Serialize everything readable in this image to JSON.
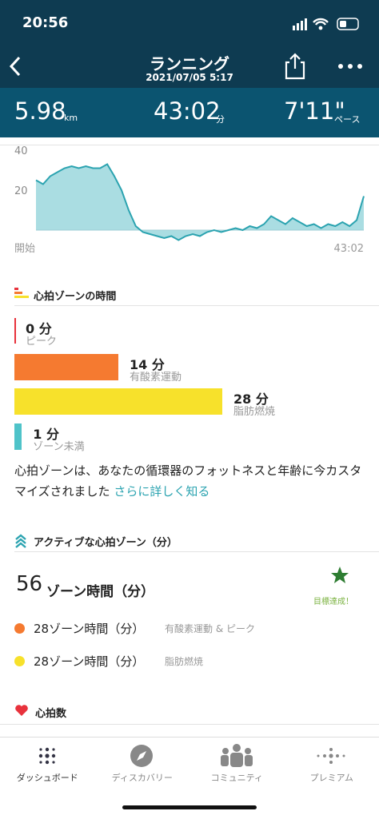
{
  "status_bar": {
    "time": "20:56"
  },
  "header": {
    "title": "ランニング",
    "datetime": "2021/07/05 5:17"
  },
  "stats": [
    {
      "value": "5.98",
      "unit": "km"
    },
    {
      "value": "43:02",
      "unit": "分"
    },
    {
      "value": "7'11\"",
      "unit": "ペース"
    }
  ],
  "pace_chart": {
    "ylim": [
      -8,
      44
    ],
    "yticks": [
      20,
      40
    ],
    "x_labels": [
      "開始",
      "43:02"
    ],
    "color": "#2ba3b0",
    "fill": "#aadde2",
    "values": [
      25,
      23,
      27,
      29,
      31,
      32,
      31,
      32,
      31,
      31,
      33,
      27,
      20,
      10,
      2,
      -1,
      -2,
      -3,
      -4,
      -3,
      -5,
      -3,
      -2,
      -3,
      -1,
      0,
      -1,
      0,
      1,
      0,
      2,
      1,
      3,
      7,
      5,
      3,
      6,
      4,
      2,
      3,
      1,
      3,
      2,
      4,
      2,
      5,
      17
    ]
  },
  "zone_section": {
    "title": "心拍ゾーンの時間",
    "zones": [
      {
        "minutes": 0,
        "label": "0 分",
        "name": "ピーク",
        "color": "#e8323c"
      },
      {
        "minutes": 14,
        "label": "14 分",
        "name": "有酸素運動",
        "color": "#f57a30"
      },
      {
        "minutes": 28,
        "label": "28 分",
        "name": "脂肪燃焼",
        "color": "#f7e12b"
      },
      {
        "minutes": 1,
        "label": "1 分",
        "name": "ゾーン未満",
        "color": "#4fc3c9"
      }
    ],
    "note": "心拍ゾーンは、あなたの循環器のフォットネスと年齢に今カスタマイズされました",
    "link": "さらに詳しく知る"
  },
  "active_section": {
    "title": "アクティブな心拍ゾーン（分）",
    "total": "56",
    "total_unit": "ゾーン時間（分）",
    "goal": "目標達成！",
    "rows": [
      {
        "value": "28ゾーン時間（分）",
        "desc": "有酸素運動 & ピーク",
        "color": "#f57a30"
      },
      {
        "value": "28ゾーン時間（分）",
        "desc": "脂肪燃焼",
        "color": "#f7e12b"
      }
    ]
  },
  "heart_section": {
    "title": "心拍数"
  },
  "nav": [
    "ダッシュボード",
    "ディスカバリー",
    "コミュニティ",
    "プレミアム"
  ]
}
